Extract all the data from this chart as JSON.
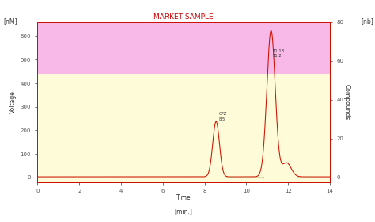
{
  "title": "MARKET SAMPLE",
  "title_color": "#cc0000",
  "xlabel": "Time",
  "xlabel_unit": "[min.]",
  "ylabel_left": "Voltage",
  "ylabel_left_unit": "[nM]",
  "ylabel_right": "Compounds",
  "ylim_left": [
    -20,
    660
  ],
  "ylim_right": [
    -2.4,
    79.2
  ],
  "xlim": [
    0,
    14
  ],
  "xticks": [
    0,
    2,
    4,
    6,
    8,
    10,
    12,
    14
  ],
  "yticks_left": [
    0,
    100,
    200,
    300,
    400,
    500,
    600
  ],
  "yticks_right": [
    0,
    20,
    40,
    60,
    80
  ],
  "bg_pink": "#f8b8e8",
  "bg_yellow": "#fefbd8",
  "bg_split_y": 440,
  "line_color": "#cc1100",
  "dot_line_color": "#aaa860",
  "peak1_x": 8.55,
  "peak1_y": 238,
  "peak1_label_line1": "CPZ",
  "peak1_label_line2": "8.5",
  "peak2_x": 11.18,
  "peak2_y": 625,
  "peak2_label_line1": "11.18",
  "peak2_label_line2": "11.2",
  "peak3_x": 11.92,
  "peak3_y": 62,
  "baseline_y": 2,
  "spine_color": "#cc1100",
  "tick_color": "#555555",
  "tick_labelsize": 5,
  "label_fontsize": 5.5,
  "title_fontsize": 6.5
}
